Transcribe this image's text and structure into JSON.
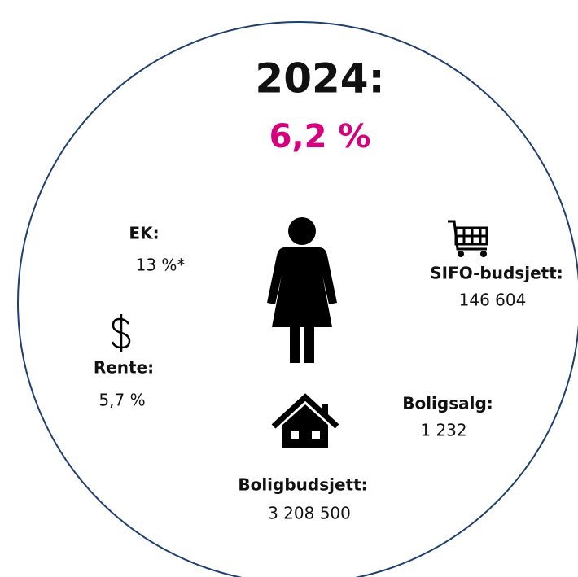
{
  "header": {
    "title": "2024:",
    "value": "6,2 %"
  },
  "items": [
    {
      "label": "EK:",
      "value": "13 %*"
    },
    {
      "label": "Rente:",
      "value": "5,7 %"
    },
    {
      "label": "SIFO-budsjett:",
      "value": "146 604"
    },
    {
      "label": "Boligsalg:",
      "value": "1 232"
    },
    {
      "label": "Boligbudsjett:",
      "value": "3 208 500"
    }
  ]
}
